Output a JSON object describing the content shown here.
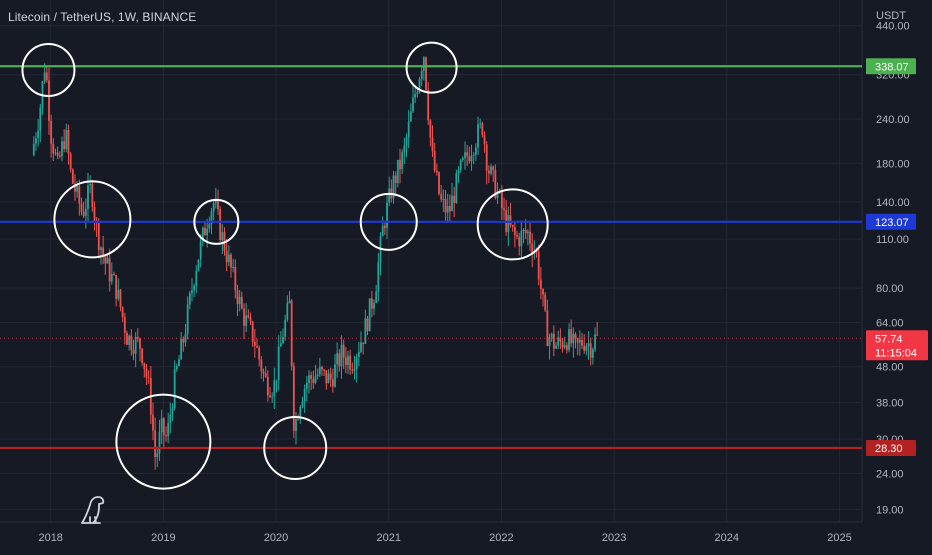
{
  "header": {
    "symbol_title": "Litecoin / TetherUS, 1W, BINANCE"
  },
  "price_axis": {
    "currency": "USDT",
    "ticks": [
      440,
      320,
      240,
      180,
      140,
      110,
      80,
      64,
      48,
      38,
      30,
      24,
      19
    ],
    "tick_labels": [
      "440.00",
      "320.00",
      "240.00",
      "180.00",
      "140.00",
      "110.00",
      "80.00",
      "64.00",
      "48.00",
      "38.00",
      "30.00",
      "24.00",
      "19.00"
    ]
  },
  "time_axis": {
    "ticks": [
      2018,
      2019,
      2020,
      2021,
      2022,
      2023,
      2024,
      2025
    ],
    "tick_labels": [
      "2018",
      "2019",
      "2020",
      "2021",
      "2022",
      "2023",
      "2024",
      "2025"
    ]
  },
  "colors": {
    "background": "#161a25",
    "grid": "#232734",
    "up": "#26a69a",
    "down": "#ef5350",
    "resistance": "#4caf50",
    "mid": "#1e3ad6",
    "support": "#b22222",
    "circle": "#ffffff",
    "current": "#f23645"
  },
  "chart_data": {
    "type": "candlestick",
    "scale": "log",
    "interval": "1W",
    "ylim": [
      17.5,
      520
    ],
    "xlim": [
      2017.55,
      2025.2
    ],
    "horizontal_levels": [
      {
        "price": 338.07,
        "label": "338.07",
        "color": "#4caf50"
      },
      {
        "price": 123.07,
        "label": "123.07",
        "color": "#1e3ad6"
      },
      {
        "price": 28.3,
        "label": "28.30",
        "color": "#b22222"
      }
    ],
    "current_price": {
      "price": 57.74,
      "label": "57.74",
      "countdown": "11:15:04"
    },
    "price_path": [
      [
        2017.85,
        190
      ],
      [
        2017.92,
        250
      ],
      [
        2017.97,
        350
      ],
      [
        2018.02,
        220
      ],
      [
        2018.08,
        175
      ],
      [
        2018.15,
        220
      ],
      [
        2018.2,
        165
      ],
      [
        2018.3,
        130
      ],
      [
        2018.38,
        155
      ],
      [
        2018.42,
        120
      ],
      [
        2018.5,
        95
      ],
      [
        2018.6,
        80
      ],
      [
        2018.7,
        58
      ],
      [
        2018.82,
        55
      ],
      [
        2018.9,
        40
      ],
      [
        2018.95,
        26
      ],
      [
        2019.0,
        32
      ],
      [
        2019.05,
        30
      ],
      [
        2019.12,
        44
      ],
      [
        2019.2,
        58
      ],
      [
        2019.3,
        90
      ],
      [
        2019.42,
        130
      ],
      [
        2019.47,
        140
      ],
      [
        2019.52,
        118
      ],
      [
        2019.62,
        90
      ],
      [
        2019.72,
        68
      ],
      [
        2019.82,
        58
      ],
      [
        2019.92,
        44
      ],
      [
        2020.0,
        42
      ],
      [
        2020.08,
        60
      ],
      [
        2020.14,
        72
      ],
      [
        2020.18,
        32
      ],
      [
        2020.24,
        40
      ],
      [
        2020.3,
        44
      ],
      [
        2020.4,
        46
      ],
      [
        2020.5,
        44
      ],
      [
        2020.6,
        52
      ],
      [
        2020.7,
        50
      ],
      [
        2020.8,
        60
      ],
      [
        2020.9,
        80
      ],
      [
        2020.97,
        120
      ],
      [
        2021.05,
        155
      ],
      [
        2021.15,
        190
      ],
      [
        2021.25,
        280
      ],
      [
        2021.33,
        370
      ],
      [
        2021.4,
        190
      ],
      [
        2021.48,
        140
      ],
      [
        2021.55,
        130
      ],
      [
        2021.65,
        170
      ],
      [
        2021.75,
        200
      ],
      [
        2021.85,
        230
      ],
      [
        2021.9,
        175
      ],
      [
        2021.98,
        150
      ],
      [
        2022.05,
        125
      ],
      [
        2022.15,
        110
      ],
      [
        2022.25,
        115
      ],
      [
        2022.33,
        100
      ],
      [
        2022.42,
        60
      ],
      [
        2022.5,
        55
      ],
      [
        2022.6,
        58
      ],
      [
        2022.68,
        54
      ],
      [
        2022.75,
        57
      ],
      [
        2022.82,
        55
      ],
      [
        2022.85,
        57.74
      ]
    ],
    "annotations": [
      {
        "type": "circle",
        "date": 2017.98,
        "price": 330,
        "r": 26
      },
      {
        "type": "circle",
        "date": 2018.37,
        "price": 125,
        "r": 38
      },
      {
        "type": "circle",
        "date": 2019.0,
        "price": 29.5,
        "r": 47
      },
      {
        "type": "circle",
        "date": 2019.47,
        "price": 123,
        "r": 22
      },
      {
        "type": "circle",
        "date": 2020.17,
        "price": 28.3,
        "r": 31
      },
      {
        "type": "circle",
        "date": 2021.0,
        "price": 123,
        "r": 28
      },
      {
        "type": "circle",
        "date": 2021.38,
        "price": 335,
        "r": 25
      },
      {
        "type": "circle",
        "date": 2022.1,
        "price": 121,
        "r": 35
      }
    ]
  }
}
